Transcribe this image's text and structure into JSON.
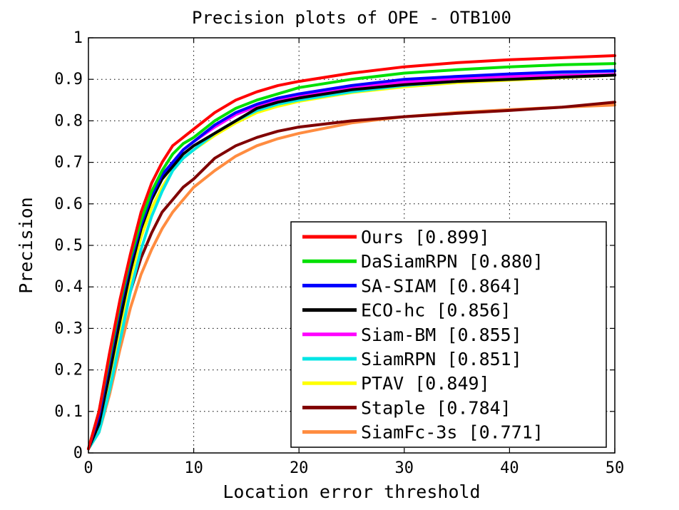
{
  "chart_data": {
    "type": "line",
    "title": "Precision plots of OPE - OTB100",
    "xlabel": "Location error threshold",
    "ylabel": "Precision",
    "xlim": [
      0,
      50
    ],
    "ylim": [
      0,
      1
    ],
    "xticks": [
      "0",
      "10",
      "20",
      "30",
      "40",
      "50"
    ],
    "yticks": [
      "0",
      "0.1",
      "0.2",
      "0.3",
      "0.4",
      "0.5",
      "0.6",
      "0.7",
      "0.8",
      "0.9",
      "1"
    ],
    "grid": true,
    "legend_position": "bottom-right",
    "x": [
      0,
      1,
      2,
      3,
      4,
      5,
      6,
      7,
      8,
      9,
      10,
      12,
      14,
      16,
      18,
      20,
      25,
      30,
      35,
      40,
      45,
      50
    ],
    "series": [
      {
        "name": "Ours [0.899]",
        "color": "#ff0000",
        "values": [
          0.01,
          0.1,
          0.24,
          0.37,
          0.48,
          0.58,
          0.65,
          0.7,
          0.74,
          0.76,
          0.78,
          0.82,
          0.85,
          0.87,
          0.885,
          0.895,
          0.915,
          0.93,
          0.94,
          0.947,
          0.952,
          0.957
        ]
      },
      {
        "name": "DaSiamRPN [0.880]",
        "color": "#00e000",
        "values": [
          0.01,
          0.1,
          0.23,
          0.36,
          0.47,
          0.56,
          0.63,
          0.68,
          0.72,
          0.745,
          0.76,
          0.8,
          0.83,
          0.85,
          0.865,
          0.88,
          0.9,
          0.915,
          0.923,
          0.93,
          0.935,
          0.938
        ]
      },
      {
        "name": "SA-SIAM [0.864]",
        "color": "#0000ff",
        "values": [
          0.01,
          0.09,
          0.22,
          0.35,
          0.46,
          0.55,
          0.62,
          0.67,
          0.7,
          0.73,
          0.75,
          0.79,
          0.82,
          0.84,
          0.855,
          0.865,
          0.885,
          0.9,
          0.907,
          0.913,
          0.918,
          0.92
        ]
      },
      {
        "name": "ECO-hc [0.856]",
        "color": "#000000",
        "values": [
          0.01,
          0.07,
          0.19,
          0.32,
          0.44,
          0.54,
          0.61,
          0.66,
          0.69,
          0.72,
          0.74,
          0.77,
          0.8,
          0.83,
          0.845,
          0.855,
          0.875,
          0.887,
          0.895,
          0.9,
          0.905,
          0.91
        ]
      },
      {
        "name": "Siam-BM [0.855]",
        "color": "#ff00ff",
        "values": [
          0.01,
          0.09,
          0.22,
          0.35,
          0.46,
          0.55,
          0.62,
          0.67,
          0.7,
          0.73,
          0.75,
          0.785,
          0.815,
          0.835,
          0.85,
          0.86,
          0.88,
          0.893,
          0.902,
          0.907,
          0.91,
          0.912
        ]
      },
      {
        "name": "SiamRPN [0.851]",
        "color": "#00e5e5",
        "values": [
          0.01,
          0.05,
          0.15,
          0.27,
          0.39,
          0.49,
          0.57,
          0.63,
          0.68,
          0.71,
          0.73,
          0.77,
          0.8,
          0.825,
          0.84,
          0.85,
          0.87,
          0.885,
          0.895,
          0.905,
          0.915,
          0.922
        ]
      },
      {
        "name": "PTAV [0.849]",
        "color": "#ffff00",
        "values": [
          0.01,
          0.07,
          0.18,
          0.3,
          0.42,
          0.52,
          0.59,
          0.64,
          0.68,
          0.71,
          0.73,
          0.765,
          0.795,
          0.82,
          0.835,
          0.847,
          0.868,
          0.882,
          0.892,
          0.898,
          0.904,
          0.91
        ]
      },
      {
        "name": "Staple [0.784]",
        "color": "#800000",
        "values": [
          0.01,
          0.07,
          0.17,
          0.29,
          0.39,
          0.47,
          0.53,
          0.58,
          0.61,
          0.64,
          0.66,
          0.71,
          0.74,
          0.76,
          0.775,
          0.785,
          0.8,
          0.81,
          0.818,
          0.825,
          0.833,
          0.845
        ]
      },
      {
        "name": "SiamFc-3s [0.771]",
        "color": "#ff8c40",
        "values": [
          0.01,
          0.05,
          0.14,
          0.25,
          0.35,
          0.43,
          0.49,
          0.54,
          0.58,
          0.61,
          0.64,
          0.68,
          0.715,
          0.74,
          0.757,
          0.77,
          0.795,
          0.81,
          0.82,
          0.827,
          0.833,
          0.838
        ]
      }
    ]
  }
}
